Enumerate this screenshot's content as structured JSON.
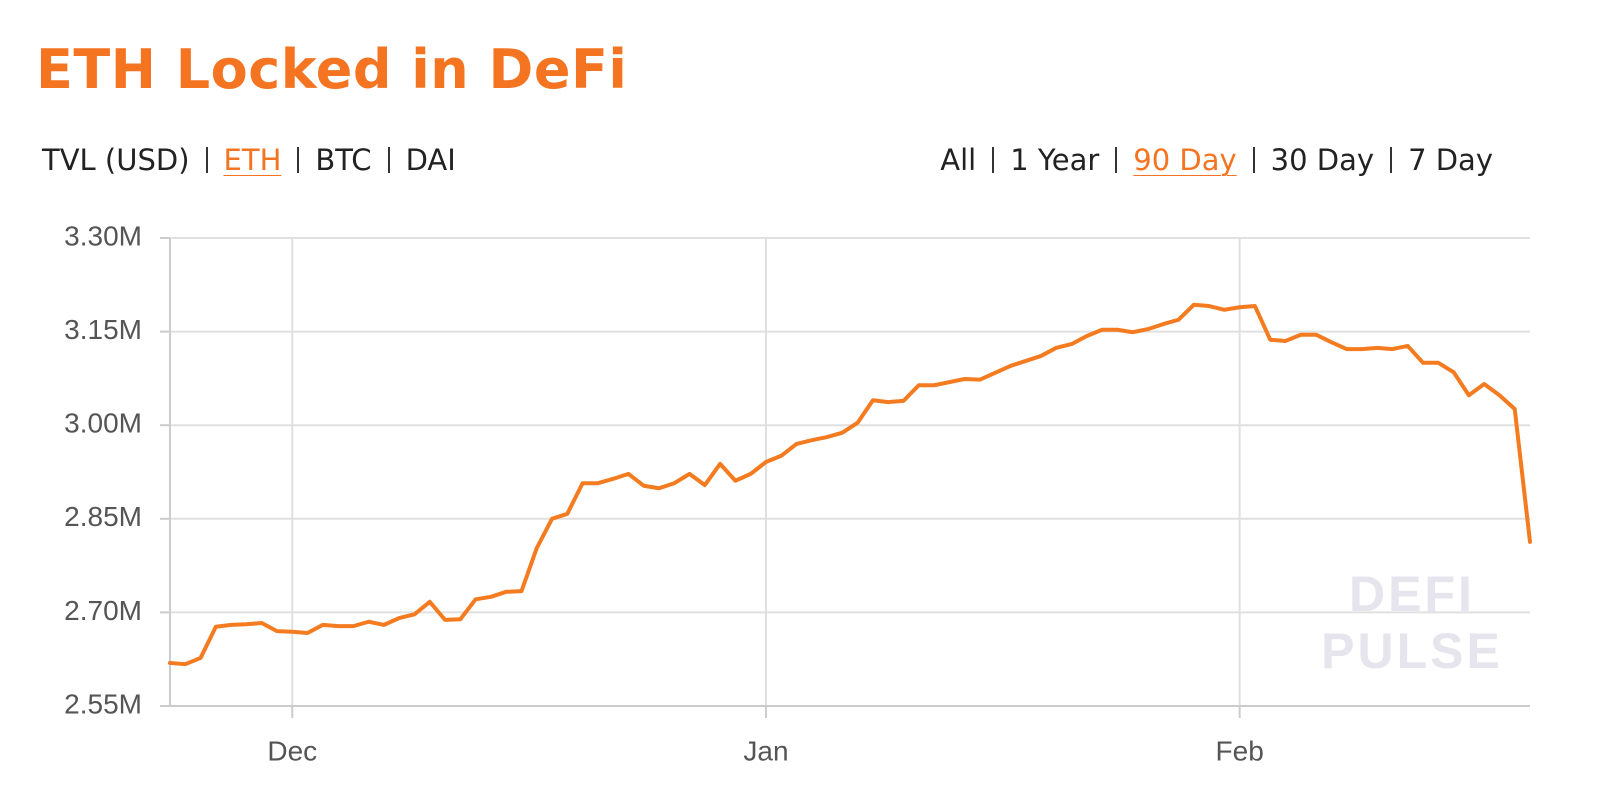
{
  "title": "ETH Locked in DeFi",
  "unit_tabs": {
    "items": [
      "TVL (USD)",
      "ETH",
      "BTC",
      "DAI"
    ],
    "active": 1
  },
  "range_tabs": {
    "items": [
      "All",
      "1 Year",
      "90 Day",
      "30 Day",
      "7 Day"
    ],
    "active": 2
  },
  "chart_data": {
    "type": "line",
    "watermark": [
      "DEFI",
      "PULSE"
    ],
    "color": "#f47b20",
    "grid": true,
    "ylim": [
      2550000,
      3300000
    ],
    "yticks": [
      {
        "value": 2550000,
        "label": "2.55M"
      },
      {
        "value": 2700000,
        "label": "2.70M"
      },
      {
        "value": 2850000,
        "label": "2.85M"
      },
      {
        "value": 3000000,
        "label": "3.00M"
      },
      {
        "value": 3150000,
        "label": "3.15M"
      },
      {
        "value": 3300000,
        "label": "3.30M"
      }
    ],
    "categories": [
      null,
      null,
      null,
      null,
      null,
      null,
      null,
      null,
      "Dec",
      null,
      null,
      null,
      null,
      null,
      null,
      null,
      null,
      null,
      null,
      null,
      null,
      null,
      null,
      null,
      null,
      null,
      null,
      null,
      null,
      null,
      null,
      null,
      null,
      null,
      null,
      null,
      null,
      null,
      null,
      "Jan",
      null,
      null,
      null,
      null,
      null,
      null,
      null,
      null,
      null,
      null,
      null,
      null,
      null,
      null,
      null,
      null,
      null,
      null,
      null,
      null,
      null,
      null,
      null,
      null,
      null,
      null,
      null,
      null,
      null,
      null,
      "Feb",
      null,
      null,
      null,
      null,
      null,
      null,
      null,
      null,
      null,
      null,
      null,
      null,
      null,
      null,
      null,
      null,
      null,
      null,
      null
    ],
    "values": [
      2619000,
      2617000,
      2627000,
      2677000,
      2680000,
      2681000,
      2683000,
      2670000,
      2669000,
      2667000,
      2680000,
      2678000,
      2678000,
      2685000,
      2680000,
      2691000,
      2697000,
      2717000,
      2688000,
      2689000,
      2721000,
      2725000,
      2733000,
      2734000,
      2803000,
      2850000,
      2858000,
      2907000,
      2907000,
      2914000,
      2922000,
      2903000,
      2899000,
      2907000,
      2922000,
      2904000,
      2938000,
      2911000,
      2922000,
      2941000,
      2951000,
      2970000,
      2976000,
      2981000,
      2988000,
      3004000,
      3040000,
      3037000,
      3039000,
      3064000,
      3064000,
      3069000,
      3074000,
      3073000,
      3084000,
      3095000,
      3103000,
      3111000,
      3124000,
      3130000,
      3143000,
      3153000,
      3153000,
      3149000,
      3154000,
      3162000,
      3169000,
      3193000,
      3191000,
      3185000,
      3189000,
      3191000,
      3137000,
      3135000,
      3145000,
      3145000,
      3133000,
      3122000,
      3122000,
      3124000,
      3122000,
      3127000,
      3100000,
      3100000,
      3085000,
      3048000,
      3066000,
      3048000,
      3026000,
      2813000
    ]
  }
}
